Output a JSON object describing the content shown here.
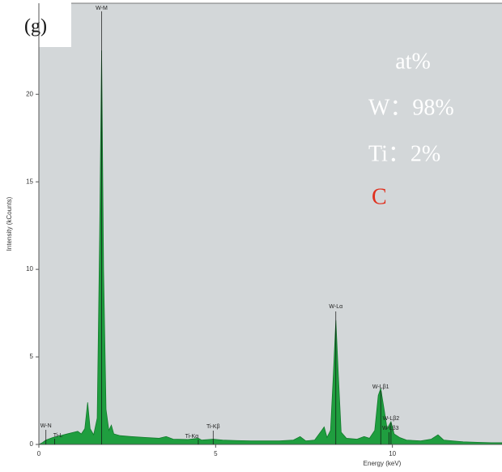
{
  "chart_data": {
    "type": "area",
    "panel_label": "(g)",
    "x_label": "Energy (keV)",
    "y_label": "Intensity (kCounts)",
    "xlim": [
      0,
      13.1
    ],
    "ylim": [
      0,
      25.2
    ],
    "xticks": [
      0,
      5,
      10
    ],
    "yticks": [
      0,
      5,
      10,
      15,
      20
    ],
    "color": "#1f9e3f",
    "x": [
      0,
      0.1,
      0.2,
      0.4,
      0.6,
      0.8,
      1.0,
      1.1,
      1.2,
      1.3,
      1.38,
      1.45,
      1.55,
      1.65,
      1.72,
      1.775,
      1.83,
      1.9,
      1.98,
      2.05,
      2.12,
      2.3,
      2.6,
      3.0,
      3.4,
      3.6,
      3.8,
      4.2,
      4.51,
      4.6,
      4.93,
      5.2,
      5.6,
      6.0,
      6.4,
      6.8,
      7.2,
      7.39,
      7.55,
      7.8,
      8.0,
      8.07,
      8.15,
      8.25,
      8.33,
      8.4,
      8.47,
      8.55,
      8.7,
      9.0,
      9.2,
      9.35,
      9.5,
      9.6,
      9.67,
      9.75,
      9.85,
      9.96,
      10.05,
      10.2,
      10.4,
      10.8,
      11.1,
      11.29,
      11.45,
      11.7,
      12.0,
      12.4,
      12.8,
      13.1
    ],
    "values": [
      0,
      0.1,
      0.25,
      0.4,
      0.5,
      0.6,
      0.7,
      0.75,
      0.6,
      0.9,
      2.4,
      0.9,
      0.55,
      1.5,
      12.0,
      22.5,
      10.0,
      2.0,
      0.8,
      1.1,
      0.6,
      0.5,
      0.45,
      0.4,
      0.35,
      0.45,
      0.3,
      0.28,
      0.35,
      0.25,
      0.3,
      0.25,
      0.22,
      0.2,
      0.2,
      0.2,
      0.25,
      0.45,
      0.2,
      0.25,
      0.8,
      1.0,
      0.4,
      0.8,
      4.0,
      7.1,
      4.0,
      0.7,
      0.35,
      0.3,
      0.45,
      0.35,
      0.8,
      2.8,
      3.2,
      2.2,
      0.9,
      1.3,
      0.6,
      0.4,
      0.25,
      0.2,
      0.3,
      0.55,
      0.25,
      0.2,
      0.15,
      0.12,
      0.1,
      0.1
    ],
    "peaks": [
      {
        "text": "W-M",
        "x": 1.775
      },
      {
        "text": "W-N",
        "x": 0.2
      },
      {
        "text": "Ti-L",
        "x": 0.45
      },
      {
        "text": "Ti-Kβ",
        "x": 4.93
      },
      {
        "text": "Ti-Kα",
        "x": 4.51
      },
      {
        "text": "W-Lα",
        "x": 8.4
      },
      {
        "text": "W-Lβ1",
        "x": 9.67
      },
      {
        "text": "W-Lβ2",
        "x": 9.96
      },
      {
        "text": "W-Lβ3",
        "x": 9.9
      }
    ],
    "annotations": [
      "at%",
      "W：98%",
      "Ti：2%",
      "C"
    ]
  }
}
